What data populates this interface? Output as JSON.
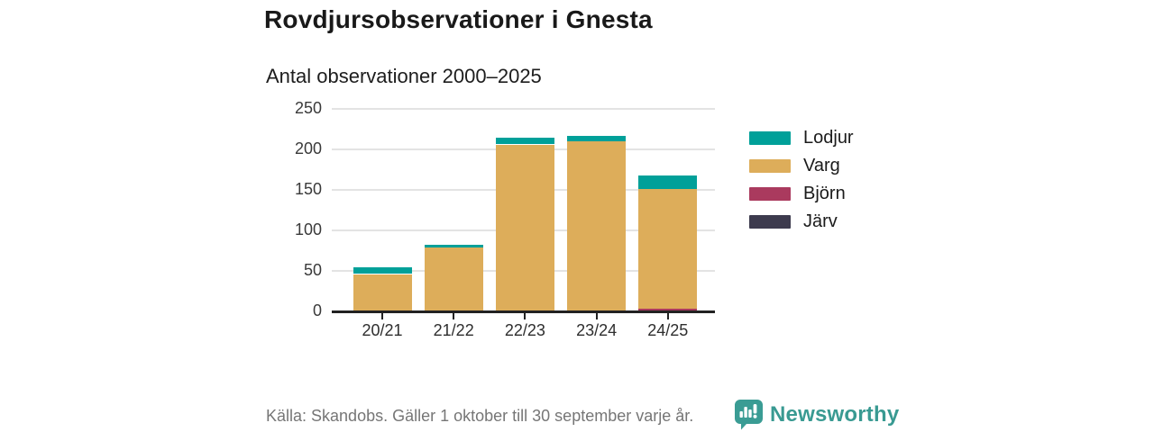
{
  "header": {
    "title": "Rovdjursobservationer i Gnesta",
    "subtitle": "Antal observationer 2000–2025"
  },
  "chart_data": {
    "type": "bar",
    "stacked": true,
    "title": "Rovdjursobservationer i Gnesta",
    "subtitle": "Antal observationer 2000–2025",
    "categories": [
      "20/21",
      "21/22",
      "22/23",
      "23/24",
      "24/25"
    ],
    "series": [
      {
        "name": "Lodjur",
        "color": "#00A099",
        "values": [
          8,
          3,
          8,
          7,
          17
        ]
      },
      {
        "name": "Varg",
        "color": "#DDAD5A",
        "values": [
          45,
          78,
          205,
          209,
          148
        ]
      },
      {
        "name": "Björn",
        "color": "#AA3A5E",
        "values": [
          0,
          0,
          0,
          0,
          2
        ]
      },
      {
        "name": "Järv",
        "color": "#3D3B4E",
        "values": [
          0,
          0,
          0,
          0,
          0
        ]
      }
    ],
    "stack_order_bottom_to_top": [
      "Järv",
      "Björn",
      "Varg",
      "Lodjur"
    ],
    "totals": [
      53,
      81,
      213,
      216,
      167
    ],
    "xlabel": "",
    "ylabel": "",
    "ylim": [
      0,
      250
    ],
    "yticks": [
      0,
      50,
      100,
      150,
      200,
      250
    ],
    "grid": true,
    "legend_position": "right"
  },
  "footer": {
    "source_note": "Källa: Skandobs. Gäller 1 oktober till 30 september varje år.",
    "brand": "Newsworthy"
  },
  "colors": {
    "lodjur_teal": "#00A099",
    "varg_tan": "#DDAD5A",
    "bjorn_maroon": "#AA3A5E",
    "jarv_dark": "#3D3B4E",
    "gridline": "#E3E3E3",
    "axis": "#222222",
    "title_text": "#191919",
    "muted_text": "#767676",
    "brand_teal": "#399A92"
  }
}
